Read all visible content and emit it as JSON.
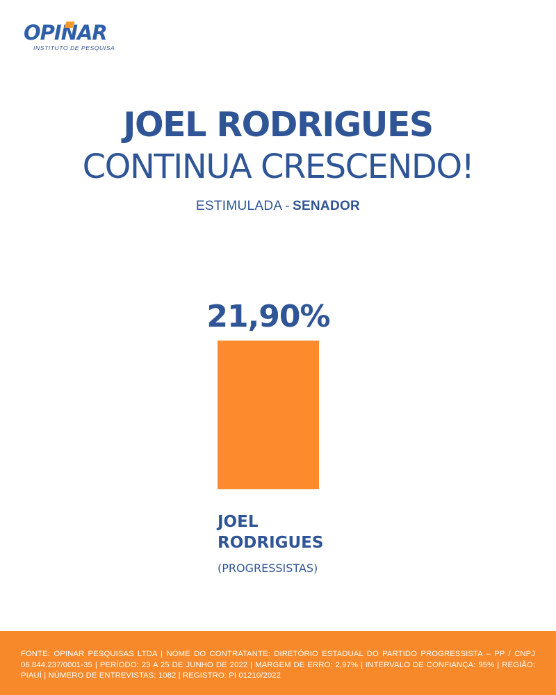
{
  "logo": {
    "name": "OPINAR",
    "tagline": "INSTITUTO DE PESQUISA"
  },
  "headline": {
    "line1": "JOEL RODRIGUES",
    "line2": "CONTINUA CRESCENDO!"
  },
  "subtitle": {
    "prefix": "ESTIMULADA",
    "separator": "-",
    "office": "SENADOR"
  },
  "colors": {
    "primary": "#2f5596",
    "accent": "#f7892a",
    "bar": "#fd8a2d"
  },
  "chart_data": {
    "type": "bar",
    "ylim": [
      0,
      21.9
    ],
    "categories": [
      "JOEL RODRIGUES"
    ],
    "series": [
      {
        "values": [
          21.9
        ],
        "value_labels": [
          "21,90%"
        ],
        "label_lines": [
          [
            "JOEL",
            "RODRIGUES"
          ]
        ],
        "party": [
          "(PROGRESSISTAS)"
        ]
      }
    ]
  },
  "footer": {
    "text": "FONTE: OPINAR PESQUISAS LTDA | NOME DO CONTRATANTE: DIRETÓRIO ESTADUAL DO PARTIDO PROGRESSISTA – PP / CNPJ 06.844.237/0001-35 | PERÍODO: 23 A 25 DE JUNHO DE 2022 | MARGEM DE ERRO: 2,97% | INTERVALO DE CONFIANÇA: 95% | REGIÃO: PIAUÍ | NÚMERO DE ENTREVISTAS: 1082 | REGISTRO: PI 01210/2022"
  }
}
